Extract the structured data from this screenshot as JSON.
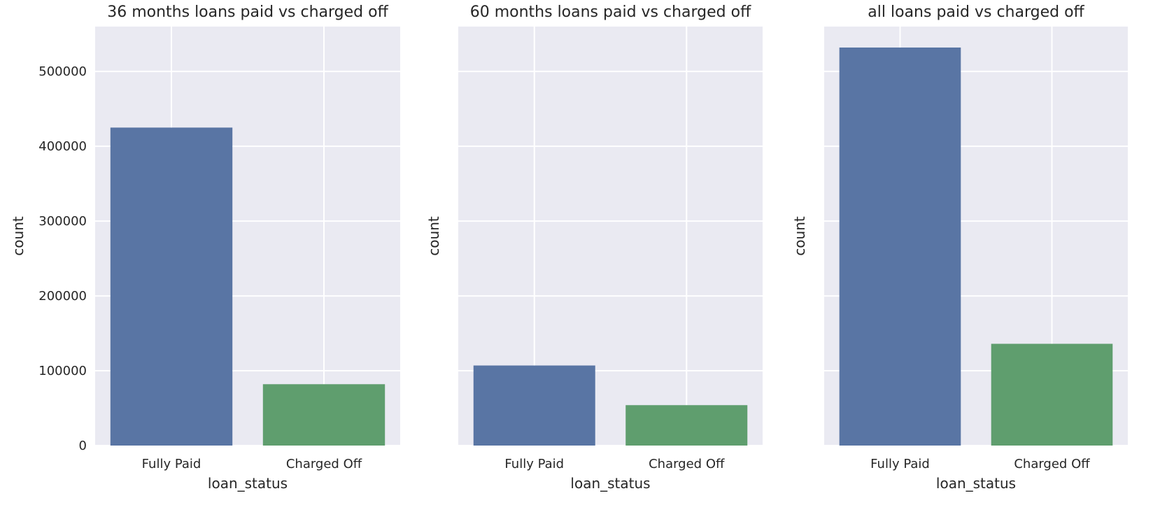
{
  "chart_data": [
    {
      "type": "bar",
      "title": "36 months loans paid vs charged off",
      "xlabel": "loan_status",
      "ylabel": "count",
      "categories": [
        "Fully Paid",
        "Charged Off"
      ],
      "values": [
        425000,
        82000
      ],
      "colors": [
        "#5975a4",
        "#5f9e6e"
      ],
      "ylim": [
        0,
        560000
      ],
      "yticks": [
        0,
        100000,
        200000,
        300000,
        400000,
        500000
      ],
      "ytick_labels": [
        "0",
        "100000",
        "200000",
        "300000",
        "400000",
        "500000"
      ],
      "grid": true
    },
    {
      "type": "bar",
      "title": "60 months loans paid vs charged off",
      "xlabel": "loan_status",
      "ylabel": "count",
      "categories": [
        "Fully Paid",
        "Charged Off"
      ],
      "values": [
        107000,
        54000
      ],
      "colors": [
        "#5975a4",
        "#5f9e6e"
      ],
      "ylim": [
        0,
        560000
      ],
      "yticks": [
        0,
        100000,
        200000,
        300000,
        400000,
        500000
      ],
      "ytick_labels": [],
      "grid": true
    },
    {
      "type": "bar",
      "title": "all loans paid vs charged off",
      "xlabel": "loan_status",
      "ylabel": "count",
      "categories": [
        "Fully Paid",
        "Charged Off"
      ],
      "values": [
        532000,
        136000
      ],
      "colors": [
        "#5975a4",
        "#5f9e6e"
      ],
      "ylim": [
        0,
        560000
      ],
      "yticks": [
        0,
        100000,
        200000,
        300000,
        400000,
        500000
      ],
      "ytick_labels": [],
      "grid": true
    }
  ],
  "style": {
    "axes_bg": "#eaeaf2",
    "grid_color": "#ffffff",
    "text_color": "#262626"
  }
}
